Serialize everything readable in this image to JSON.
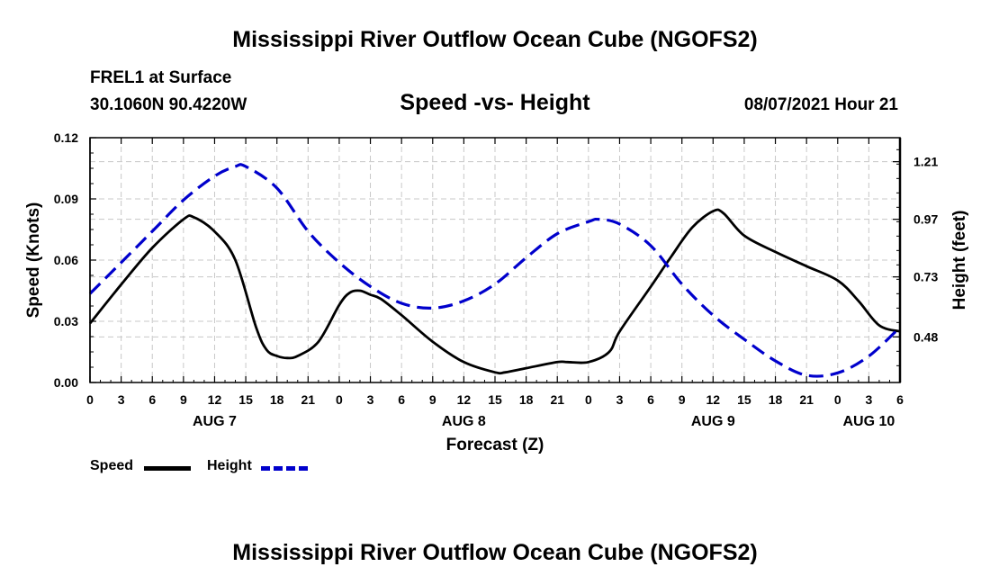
{
  "title": "Mississippi River Outflow Ocean Cube (NGOFS2)",
  "station": "FREL1 at Surface",
  "coords": "30.1060N  90.4220W",
  "subtitle": "Speed -vs- Height",
  "datetime": "08/07/2021 Hour 21",
  "legend": {
    "speed": "Speed",
    "height": "Height"
  },
  "colors": {
    "speed": "#000000",
    "height": "#0000cc",
    "grid": "#c8c8c8"
  },
  "chart_data": {
    "type": "line",
    "title": "Speed -vs- Height",
    "xlabel": "Forecast (Z)",
    "ylabel": "Speed (Knots)",
    "y2label": "Height (feet)",
    "xlim": [
      0,
      78
    ],
    "ylim": [
      0,
      0.12
    ],
    "y2lim": [
      0.29,
      1.31
    ],
    "x_ticks": [
      0,
      3,
      6,
      9,
      12,
      15,
      18,
      21,
      24,
      27,
      30,
      33,
      36,
      39,
      42,
      45,
      48,
      51,
      54,
      57,
      60,
      63,
      66,
      69,
      72,
      75,
      78
    ],
    "x_tick_labels": [
      "0",
      "3",
      "6",
      "9",
      "12",
      "15",
      "18",
      "21",
      "0",
      "3",
      "6",
      "9",
      "12",
      "15",
      "18",
      "21",
      "0",
      "3",
      "6",
      "9",
      "12",
      "15",
      "18",
      "21",
      "0",
      "3",
      "6"
    ],
    "date_labels": [
      {
        "x": 12,
        "label": "AUG 7"
      },
      {
        "x": 36,
        "label": "AUG 8"
      },
      {
        "x": 60,
        "label": "AUG 9"
      },
      {
        "x": 75,
        "label": "AUG 10"
      }
    ],
    "y_ticks": [
      0,
      0.03,
      0.06,
      0.09,
      0.12
    ],
    "y_tick_labels": [
      "0.00",
      "0.03",
      "0.06",
      "0.09",
      "0.12"
    ],
    "y2_ticks": [
      0.48,
      0.73,
      0.97,
      1.21
    ],
    "y2_tick_labels": [
      "0.48",
      "0.73",
      "0.97",
      "1.21"
    ],
    "series": [
      {
        "name": "Speed",
        "axis": "left",
        "x": [
          0,
          3,
          6,
          9,
          10,
          12,
          14,
          16,
          17,
          18,
          19,
          20,
          22,
          24,
          25,
          26,
          27,
          28,
          30,
          33,
          36,
          39,
          40,
          42,
          45,
          46,
          48,
          50,
          51,
          54,
          56,
          58,
          60,
          61,
          63,
          66,
          69,
          72,
          74,
          76,
          78
        ],
        "values": [
          0.029,
          0.048,
          0.066,
          0.08,
          0.081,
          0.074,
          0.06,
          0.027,
          0.016,
          0.013,
          0.012,
          0.013,
          0.02,
          0.038,
          0.044,
          0.045,
          0.043,
          0.041,
          0.033,
          0.02,
          0.01,
          0.005,
          0.005,
          0.007,
          0.01,
          0.01,
          0.01,
          0.015,
          0.025,
          0.047,
          0.062,
          0.076,
          0.084,
          0.083,
          0.072,
          0.064,
          0.057,
          0.05,
          0.04,
          0.028,
          0.025
        ]
      },
      {
        "name": "Height",
        "axis": "right",
        "x": [
          0,
          3,
          6,
          9,
          12,
          14,
          15,
          18,
          21,
          24,
          27,
          30,
          33,
          36,
          39,
          42,
          45,
          48,
          49,
          51,
          54,
          57,
          60,
          63,
          66,
          69,
          72,
          75,
          78
        ],
        "values": [
          0.66,
          0.79,
          0.92,
          1.05,
          1.15,
          1.19,
          1.19,
          1.1,
          0.92,
          0.79,
          0.69,
          0.62,
          0.6,
          0.63,
          0.7,
          0.81,
          0.91,
          0.96,
          0.97,
          0.95,
          0.86,
          0.7,
          0.57,
          0.47,
          0.38,
          0.32,
          0.33,
          0.4,
          0.52
        ]
      }
    ]
  }
}
